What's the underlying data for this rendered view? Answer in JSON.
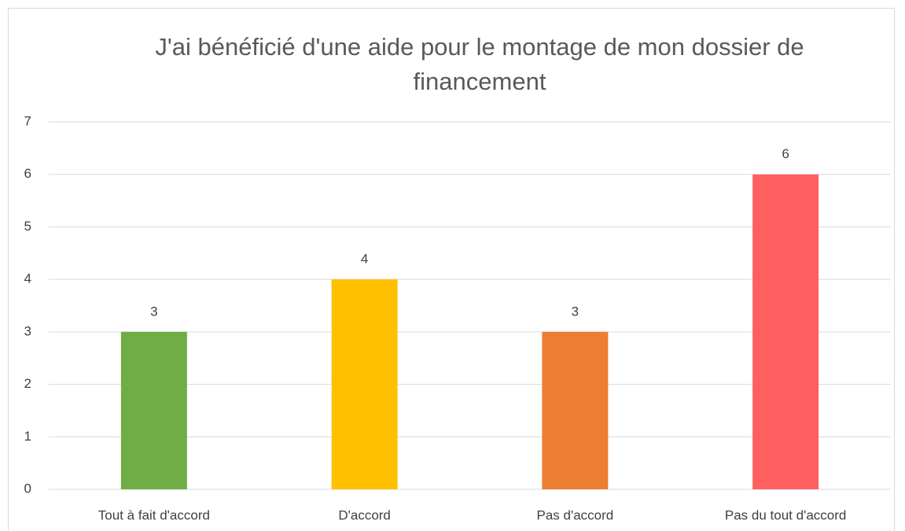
{
  "chart_data": {
    "type": "bar",
    "title": "J'ai bénéficié d'une aide pour le montage de mon dossier de financement",
    "categories": [
      "Tout à fait d'accord",
      "D'accord",
      "Pas d'accord",
      "Pas du tout d'accord"
    ],
    "values": [
      3,
      4,
      3,
      6
    ],
    "colors": [
      "#70ad47",
      "#ffc000",
      "#ed7d31",
      "#ff5f5f"
    ],
    "ylim": [
      0,
      7
    ],
    "yticks": [
      0,
      1,
      2,
      3,
      4,
      5,
      6,
      7
    ],
    "grid": true
  }
}
